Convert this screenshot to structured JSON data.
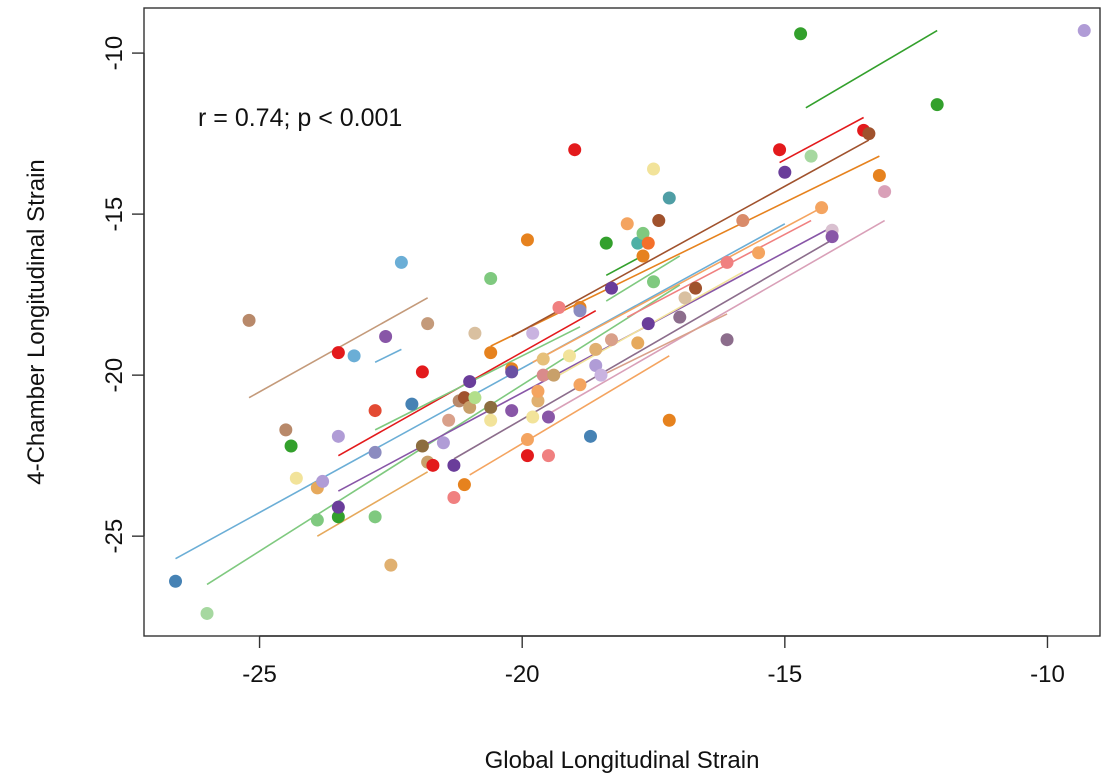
{
  "chart_data": {
    "type": "scatter",
    "title": "",
    "xlabel": "Global Longitudinal Strain",
    "ylabel": "4-Chamber Longitudinal Strain",
    "xlim": [
      -27.2,
      -9.0
    ],
    "ylim": [
      -28.1,
      -8.6
    ],
    "xticks": [
      -25,
      -20,
      -15,
      -10
    ],
    "yticks": [
      -10,
      -15,
      -20,
      -25
    ],
    "x_tick_labels": [
      "-25",
      "-20",
      "-15",
      "-10"
    ],
    "y_tick_labels": [
      "-10",
      "-15",
      "-20",
      "-25"
    ],
    "annotation": "r = 0.74; p < 0.001",
    "grid": false,
    "legend": "none",
    "points": [
      {
        "x": -26.6,
        "y": -26.4,
        "color": "#4682b4"
      },
      {
        "x": -26.0,
        "y": -27.4,
        "color": "#a6d8a0"
      },
      {
        "x": -25.2,
        "y": -18.3,
        "color": "#b8896a"
      },
      {
        "x": -24.5,
        "y": -21.7,
        "color": "#b8896a"
      },
      {
        "x": -24.4,
        "y": -22.2,
        "color": "#33a02c"
      },
      {
        "x": -24.3,
        "y": -23.2,
        "color": "#f2e39a"
      },
      {
        "x": -23.9,
        "y": -24.5,
        "color": "#7fc97f"
      },
      {
        "x": -23.9,
        "y": -23.5,
        "color": "#e6a95c"
      },
      {
        "x": -23.8,
        "y": -23.3,
        "color": "#b09cd6"
      },
      {
        "x": -23.5,
        "y": -24.4,
        "color": "#33a02c"
      },
      {
        "x": -23.5,
        "y": -24.1,
        "color": "#6a3d9a"
      },
      {
        "x": -23.5,
        "y": -21.9,
        "color": "#b09cd6"
      },
      {
        "x": -23.5,
        "y": -19.3,
        "color": "#e31a1c"
      },
      {
        "x": -23.2,
        "y": -19.4,
        "color": "#6baed6"
      },
      {
        "x": -22.8,
        "y": -24.4,
        "color": "#7fc97f"
      },
      {
        "x": -22.8,
        "y": -21.1,
        "color": "#e34a33"
      },
      {
        "x": -22.8,
        "y": -22.4,
        "color": "#8c8cc0"
      },
      {
        "x": -22.6,
        "y": -18.8,
        "color": "#8856a7"
      },
      {
        "x": -22.5,
        "y": -25.9,
        "color": "#e0b070"
      },
      {
        "x": -22.3,
        "y": -16.5,
        "color": "#6baed6"
      },
      {
        "x": -22.1,
        "y": -20.9,
        "color": "#4682b4"
      },
      {
        "x": -21.9,
        "y": -19.9,
        "color": "#e31a1c"
      },
      {
        "x": -21.9,
        "y": -22.2,
        "color": "#8c6d3f"
      },
      {
        "x": -21.8,
        "y": -18.4,
        "color": "#c49a7a"
      },
      {
        "x": -21.8,
        "y": -22.7,
        "color": "#c8a06a"
      },
      {
        "x": -21.7,
        "y": -22.8,
        "color": "#e31a1c"
      },
      {
        "x": -21.5,
        "y": -22.1,
        "color": "#b09cd6"
      },
      {
        "x": -21.4,
        "y": -21.4,
        "color": "#d9a08a"
      },
      {
        "x": -21.3,
        "y": -23.8,
        "color": "#f08080"
      },
      {
        "x": -21.3,
        "y": -22.8,
        "color": "#6a3d9a"
      },
      {
        "x": -21.2,
        "y": -20.8,
        "color": "#b8896a"
      },
      {
        "x": -21.1,
        "y": -20.7,
        "color": "#a0522d"
      },
      {
        "x": -21.1,
        "y": -23.4,
        "color": "#e6821e"
      },
      {
        "x": -21.0,
        "y": -21.0,
        "color": "#c8a06a"
      },
      {
        "x": -21.0,
        "y": -20.2,
        "color": "#6a3d9a"
      },
      {
        "x": -20.9,
        "y": -20.7,
        "color": "#b2df8a"
      },
      {
        "x": -20.9,
        "y": -18.7,
        "color": "#d9c0a0"
      },
      {
        "x": -20.6,
        "y": -21.0,
        "color": "#8c6d3f"
      },
      {
        "x": -20.6,
        "y": -21.4,
        "color": "#f2e39a"
      },
      {
        "x": -20.6,
        "y": -17.0,
        "color": "#7fc97f"
      },
      {
        "x": -20.6,
        "y": -19.3,
        "color": "#e6821e"
      },
      {
        "x": -20.2,
        "y": -19.8,
        "color": "#e6821e"
      },
      {
        "x": -20.2,
        "y": -21.1,
        "color": "#8856a7"
      },
      {
        "x": -20.2,
        "y": -19.9,
        "color": "#6a51a3"
      },
      {
        "x": -19.9,
        "y": -22.5,
        "color": "#e31a1c"
      },
      {
        "x": -19.9,
        "y": -22.0,
        "color": "#f4a460"
      },
      {
        "x": -19.9,
        "y": -15.8,
        "color": "#e6821e"
      },
      {
        "x": -19.8,
        "y": -21.3,
        "color": "#f2e39a"
      },
      {
        "x": -19.8,
        "y": -18.7,
        "color": "#c9b3e0"
      },
      {
        "x": -19.7,
        "y": -20.8,
        "color": "#e0b070"
      },
      {
        "x": -19.7,
        "y": -20.5,
        "color": "#f4a460"
      },
      {
        "x": -19.6,
        "y": -20.0,
        "color": "#d98b8b"
      },
      {
        "x": -19.6,
        "y": -19.5,
        "color": "#e6c07a"
      },
      {
        "x": -19.5,
        "y": -21.3,
        "color": "#8856a7"
      },
      {
        "x": -19.5,
        "y": -22.5,
        "color": "#f08080"
      },
      {
        "x": -19.4,
        "y": -20.0,
        "color": "#c8a06a"
      },
      {
        "x": -19.3,
        "y": -17.9,
        "color": "#f08080"
      },
      {
        "x": -19.1,
        "y": -19.4,
        "color": "#f2e39a"
      },
      {
        "x": -19.0,
        "y": -13.0,
        "color": "#e31a1c"
      },
      {
        "x": -18.9,
        "y": -20.3,
        "color": "#f4a460"
      },
      {
        "x": -18.9,
        "y": -17.9,
        "color": "#e6821e"
      },
      {
        "x": -18.9,
        "y": -18.0,
        "color": "#8c8cc0"
      },
      {
        "x": -18.7,
        "y": -21.9,
        "color": "#4682b4"
      },
      {
        "x": -18.6,
        "y": -19.2,
        "color": "#e0b070"
      },
      {
        "x": -18.6,
        "y": -19.7,
        "color": "#b09cd6"
      },
      {
        "x": -18.5,
        "y": -20.0,
        "color": "#c9b3e0"
      },
      {
        "x": -18.4,
        "y": -15.9,
        "color": "#33a02c"
      },
      {
        "x": -18.3,
        "y": -18.9,
        "color": "#d9a08a"
      },
      {
        "x": -18.3,
        "y": -17.3,
        "color": "#6a3d9a"
      },
      {
        "x": -18.0,
        "y": -15.3,
        "color": "#f4a460"
      },
      {
        "x": -17.8,
        "y": -19.0,
        "color": "#e6a95c"
      },
      {
        "x": -17.8,
        "y": -15.9,
        "color": "#4fb0a5"
      },
      {
        "x": -17.7,
        "y": -15.6,
        "color": "#7fc97f"
      },
      {
        "x": -17.7,
        "y": -16.3,
        "color": "#e6821e"
      },
      {
        "x": -17.6,
        "y": -18.4,
        "color": "#6a3d9a"
      },
      {
        "x": -17.6,
        "y": -15.9,
        "color": "#f4702a"
      },
      {
        "x": -17.5,
        "y": -17.1,
        "color": "#7fc97f"
      },
      {
        "x": -17.5,
        "y": -13.6,
        "color": "#f2e39a"
      },
      {
        "x": -17.4,
        "y": -15.2,
        "color": "#a0522d"
      },
      {
        "x": -17.2,
        "y": -14.5,
        "color": "#4f9ea5"
      },
      {
        "x": -17.2,
        "y": -21.4,
        "color": "#e6821e"
      },
      {
        "x": -17.0,
        "y": -18.2,
        "color": "#8c6d8c"
      },
      {
        "x": -16.9,
        "y": -17.6,
        "color": "#d9c0a0"
      },
      {
        "x": -16.7,
        "y": -17.3,
        "color": "#a0522d"
      },
      {
        "x": -16.1,
        "y": -16.5,
        "color": "#f08080"
      },
      {
        "x": -16.1,
        "y": -18.9,
        "color": "#8c6d8c"
      },
      {
        "x": -15.8,
        "y": -15.2,
        "color": "#d98b6a"
      },
      {
        "x": -15.5,
        "y": -16.2,
        "color": "#f4a460"
      },
      {
        "x": -15.1,
        "y": -13.0,
        "color": "#e31a1c"
      },
      {
        "x": -15.0,
        "y": -13.7,
        "color": "#6a3d9a"
      },
      {
        "x": -14.7,
        "y": -9.4,
        "color": "#33a02c"
      },
      {
        "x": -14.5,
        "y": -13.2,
        "color": "#a6d8a0"
      },
      {
        "x": -14.3,
        "y": -14.8,
        "color": "#f4a460"
      },
      {
        "x": -14.1,
        "y": -15.5,
        "color": "#d9c0d0"
      },
      {
        "x": -14.1,
        "y": -15.7,
        "color": "#8856a7"
      },
      {
        "x": -13.5,
        "y": -12.4,
        "color": "#e31a1c"
      },
      {
        "x": -13.4,
        "y": -12.5,
        "color": "#a0522d"
      },
      {
        "x": -13.2,
        "y": -13.8,
        "color": "#e6821e"
      },
      {
        "x": -13.1,
        "y": -14.3,
        "color": "#d9a0b8"
      },
      {
        "x": -12.1,
        "y": -11.6,
        "color": "#33a02c"
      },
      {
        "x": -9.3,
        "y": -9.3,
        "color": "#b09cd6"
      }
    ],
    "fit_lines": [
      {
        "x": [
          -26.6,
          -15.0
        ],
        "y": [
          -25.7,
          -15.3
        ],
        "color": "#6baed6"
      },
      {
        "x": [
          -26.0,
          -17.0
        ],
        "y": [
          -26.5,
          -17.2
        ],
        "color": "#7fc97f"
      },
      {
        "x": [
          -25.2,
          -21.8
        ],
        "y": [
          -20.7,
          -17.6
        ],
        "color": "#c49a7a"
      },
      {
        "x": [
          -23.5,
          -18.6
        ],
        "y": [
          -22.5,
          -18.0
        ],
        "color": "#e31a1c"
      },
      {
        "x": [
          -23.5,
          -14.1
        ],
        "y": [
          -23.6,
          -15.4
        ],
        "color": "#8856a7"
      },
      {
        "x": [
          -23.9,
          -21.8
        ],
        "y": [
          -25.0,
          -23.0
        ],
        "color": "#e6a95c"
      },
      {
        "x": [
          -22.8,
          -22.3
        ],
        "y": [
          -19.6,
          -19.2
        ],
        "color": "#6baed6"
      },
      {
        "x": [
          -22.8,
          -18.9
        ],
        "y": [
          -21.7,
          -18.5
        ],
        "color": "#7fc97f"
      },
      {
        "x": [
          -21.0,
          -17.2
        ],
        "y": [
          -23.1,
          -19.4
        ],
        "color": "#f4a460"
      },
      {
        "x": [
          -21.3,
          -14.1
        ],
        "y": [
          -22.6,
          -15.8
        ],
        "color": "#8c6d8c"
      },
      {
        "x": [
          -20.6,
          -13.2
        ],
        "y": [
          -19.1,
          -13.2
        ],
        "color": "#e6821e"
      },
      {
        "x": [
          -20.2,
          -13.4
        ],
        "y": [
          -18.8,
          -12.7
        ],
        "color": "#a0522d"
      },
      {
        "x": [
          -19.8,
          -14.3
        ],
        "y": [
          -19.6,
          -14.8
        ],
        "color": "#f4a460"
      },
      {
        "x": [
          -19.6,
          -13.1
        ],
        "y": [
          -21.3,
          -15.2
        ],
        "color": "#d9a0b8"
      },
      {
        "x": [
          -19.3,
          -15.8
        ],
        "y": [
          -20.0,
          -16.8
        ],
        "color": "#f2e39a"
      },
      {
        "x": [
          -18.6,
          -16.1
        ],
        "y": [
          -20.1,
          -18.1
        ],
        "color": "#d9a08a"
      },
      {
        "x": [
          -18.4,
          -17.6
        ],
        "y": [
          -16.9,
          -16.2
        ],
        "color": "#33a02c"
      },
      {
        "x": [
          -18.4,
          -17.0
        ],
        "y": [
          -17.7,
          -16.3
        ],
        "color": "#7fc97f"
      },
      {
        "x": [
          -18.0,
          -14.5
        ],
        "y": [
          -18.2,
          -15.2
        ],
        "color": "#f08080"
      },
      {
        "x": [
          -15.1,
          -13.5
        ],
        "y": [
          -13.4,
          -12.0
        ],
        "color": "#e31a1c"
      },
      {
        "x": [
          -14.6,
          -12.1
        ],
        "y": [
          -11.7,
          -9.3
        ],
        "color": "#33a02c"
      }
    ]
  }
}
